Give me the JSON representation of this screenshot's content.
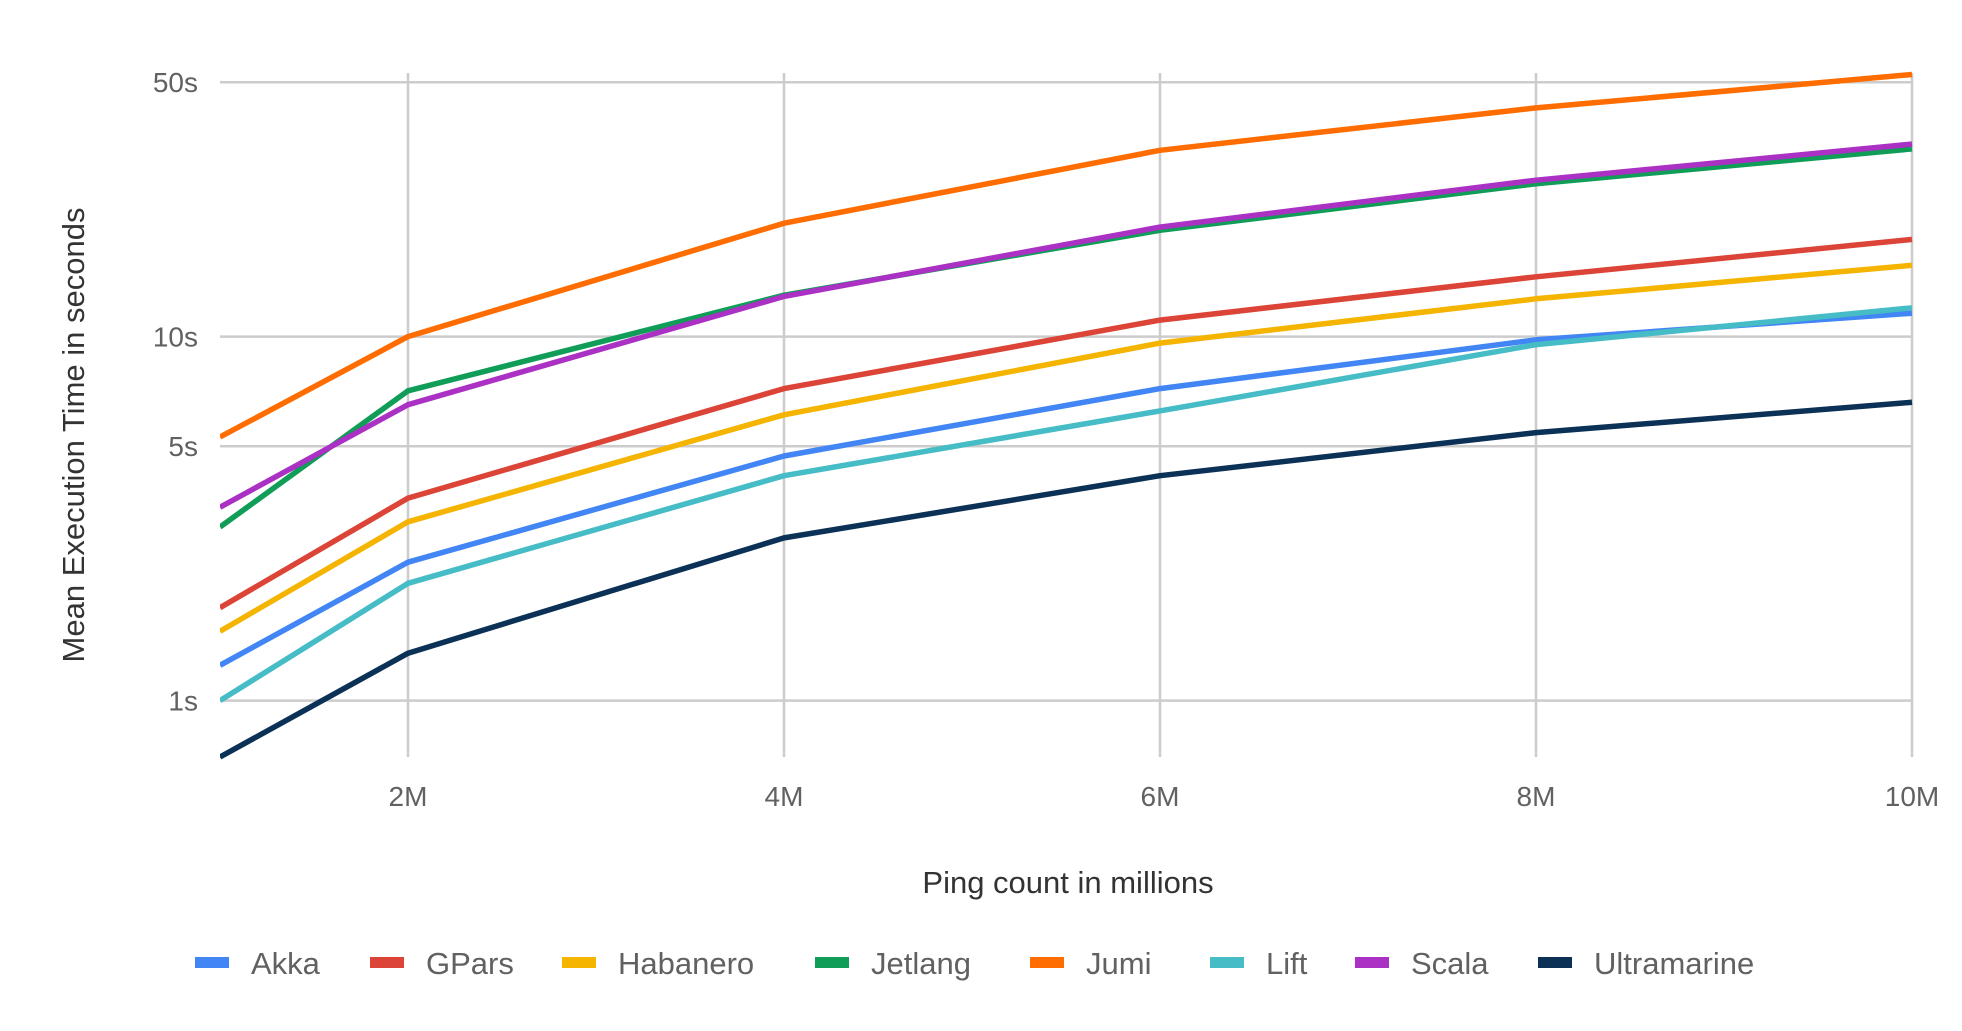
{
  "chart_data": {
    "type": "line",
    "title": "",
    "xlabel": "Ping count in millions",
    "ylabel": "Mean Execution Time in seconds",
    "y_scale": "log",
    "ylim": [
      0.7,
      53
    ],
    "xlim": [
      1,
      10
    ],
    "y_ticks": [
      1,
      5,
      10,
      50
    ],
    "y_tick_labels": [
      "1s",
      "5s",
      "10s",
      "50s"
    ],
    "x_ticks": [
      2,
      4,
      6,
      8,
      10
    ],
    "x_tick_labels": [
      "2M",
      "4M",
      "6M",
      "8M",
      "10M"
    ],
    "grid": true,
    "legend_position": "bottom",
    "x": [
      1,
      2,
      4,
      6,
      8,
      10
    ],
    "series": [
      {
        "name": "Akka",
        "color": "#4285f4",
        "values": [
          1.25,
          2.4,
          4.7,
          7.2,
          9.8,
          11.6
        ]
      },
      {
        "name": "GPars",
        "color": "#db4437",
        "values": [
          1.8,
          3.6,
          7.2,
          11.1,
          14.6,
          18.5
        ]
      },
      {
        "name": "Habanero",
        "color": "#f4b400",
        "values": [
          1.55,
          3.1,
          6.1,
          9.6,
          12.7,
          15.7
        ]
      },
      {
        "name": "Jetlang",
        "color": "#0f9d58",
        "values": [
          3.0,
          7.1,
          13.0,
          19.6,
          26.3,
          32.8
        ]
      },
      {
        "name": "Jumi",
        "color": "#ff6d00",
        "values": [
          5.3,
          10.0,
          20.5,
          32.5,
          42.5,
          52.5
        ]
      },
      {
        "name": "Lift",
        "color": "#46bdc6",
        "values": [
          1.0,
          2.1,
          4.15,
          6.25,
          9.5,
          12.0
        ]
      },
      {
        "name": "Scala",
        "color": "#ab30c4",
        "values": [
          3.4,
          6.5,
          12.9,
          20.0,
          26.9,
          33.8
        ]
      },
      {
        "name": "Ultramarine",
        "color": "#0b3157",
        "values": [
          0.7,
          1.35,
          2.8,
          4.15,
          5.45,
          6.6
        ]
      }
    ]
  }
}
